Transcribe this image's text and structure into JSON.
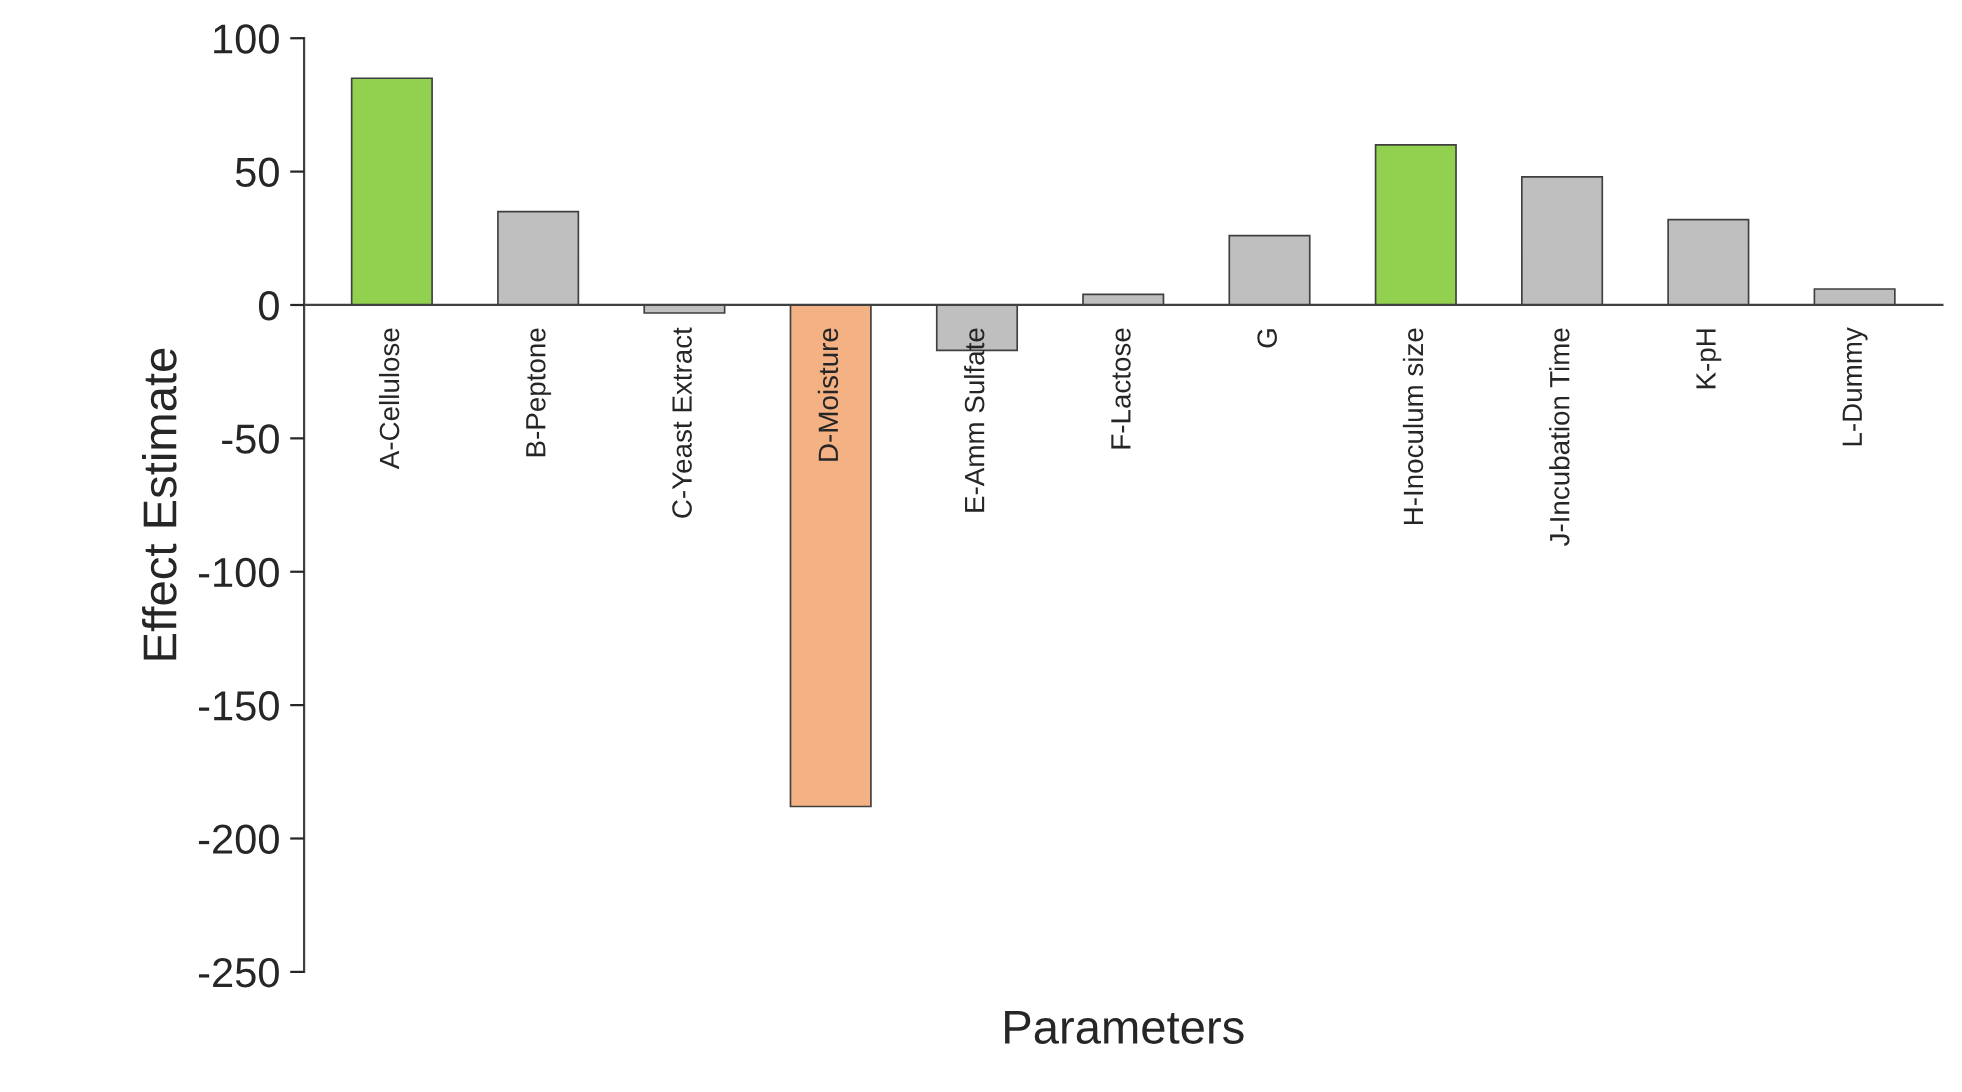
{
  "chart_data": {
    "type": "bar",
    "xlabel": "Parameters",
    "ylabel": "Effect Estimate",
    "categories": [
      "A-Cellulose",
      "B-Peptone",
      "C-Yeast Extract",
      "D-Moisture",
      "E-Amm Sulfate",
      "F-Lactose",
      "G",
      "H-Inoculum size",
      "J-Incubation Time",
      "K-pH",
      "L-Dummy"
    ],
    "values": [
      85,
      35,
      -3,
      -188,
      -17,
      4,
      26,
      60,
      48,
      32,
      6
    ],
    "colors": [
      "#92d050",
      "#bfbfbf",
      "#bfbfbf",
      "#f4b183",
      "#bfbfbf",
      "#bfbfbf",
      "#bfbfbf",
      "#92d050",
      "#bfbfbf",
      "#bfbfbf",
      "#bfbfbf"
    ],
    "ylim": [
      -250,
      100
    ],
    "yticks": [
      -250,
      -200,
      -150,
      -100,
      -50,
      0,
      50,
      100
    ],
    "grid": false,
    "legend": false
  }
}
